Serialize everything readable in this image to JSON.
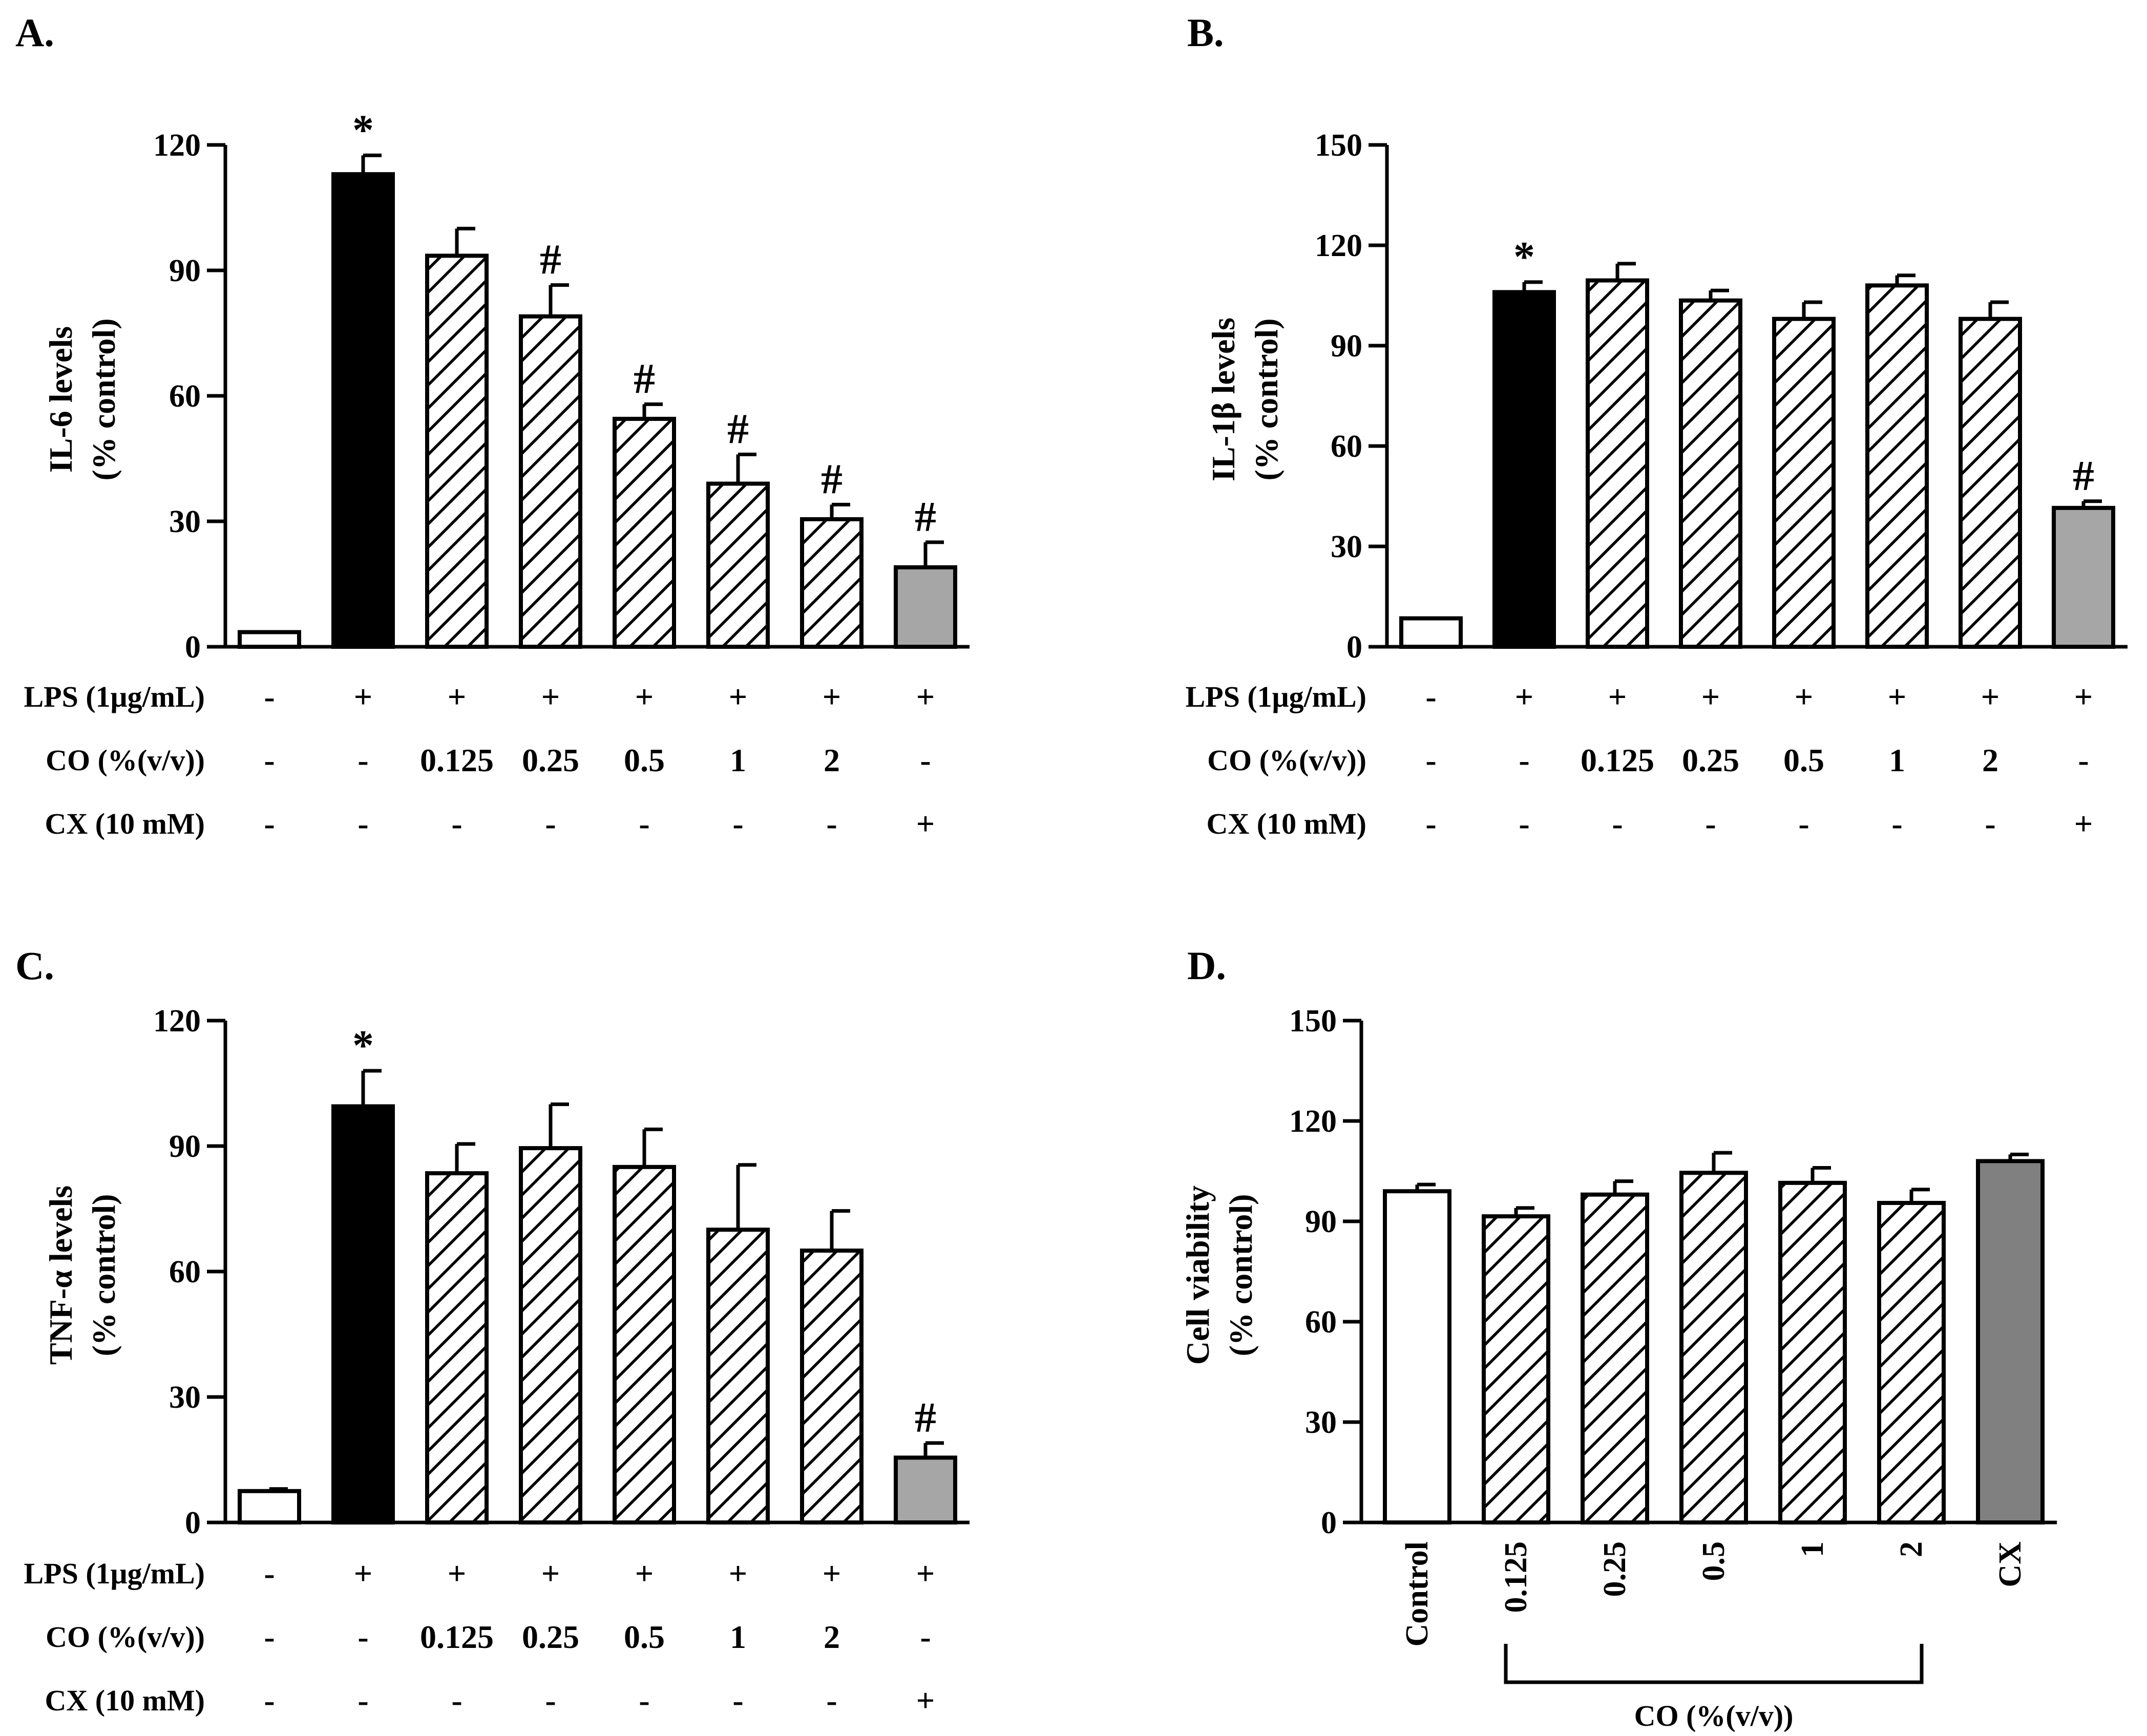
{
  "colors": {
    "axis": "#000000",
    "white": "#ffffff",
    "black": "#000000",
    "grey": "#a6a6a6",
    "dark_grey": "#808080"
  },
  "chart_data": [
    {
      "type": "bar",
      "panel": "A.",
      "ylabel_lines": [
        "IL-6 levels",
        "(% control)"
      ],
      "ylim": [
        0,
        120
      ],
      "yticks": [
        0,
        30,
        60,
        90,
        120
      ],
      "values": [
        3.5,
        113,
        93.5,
        79,
        54.5,
        39,
        30.5,
        19
      ],
      "errors": [
        0,
        4.5,
        6.5,
        7.5,
        3.5,
        7,
        3.5,
        6
      ],
      "fills": [
        "white",
        "black",
        "hatch",
        "hatch",
        "hatch",
        "hatch",
        "hatch",
        "grey"
      ],
      "marks": [
        "",
        "*",
        "",
        "#",
        "#",
        "#",
        "#",
        "#"
      ],
      "conditions": [
        {
          "label": "LPS (1μg/mL)",
          "values": [
            "-",
            "+",
            "+",
            "+",
            "+",
            "+",
            "+",
            "+"
          ]
        },
        {
          "label": "CO (%(v/v))",
          "values": [
            "-",
            "-",
            "0.125",
            "0.25",
            "0.5",
            "1",
            "2",
            "-"
          ]
        },
        {
          "label": "CX (10 mM)",
          "values": [
            "-",
            "-",
            "-",
            "-",
            "-",
            "-",
            "-",
            "+"
          ]
        }
      ]
    },
    {
      "type": "bar",
      "panel": "B.",
      "ylabel_lines": [
        "IL-1β levels",
        "(% control)"
      ],
      "ylim": [
        0,
        150
      ],
      "yticks": [
        0,
        30,
        60,
        90,
        120,
        150
      ],
      "values": [
        8.5,
        106,
        109.5,
        103.5,
        98,
        108,
        98,
        41.5
      ],
      "errors": [
        0,
        3,
        5,
        3,
        5,
        3,
        5,
        2
      ],
      "fills": [
        "white",
        "black",
        "hatch",
        "hatch",
        "hatch",
        "hatch",
        "hatch",
        "grey"
      ],
      "marks": [
        "",
        "*",
        "",
        "",
        "",
        "",
        "",
        "#"
      ],
      "conditions": [
        {
          "label": "LPS (1μg/mL)",
          "values": [
            "-",
            "+",
            "+",
            "+",
            "+",
            "+",
            "+",
            "+"
          ]
        },
        {
          "label": "CO (%(v/v))",
          "values": [
            "-",
            "-",
            "0.125",
            "0.25",
            "0.5",
            "1",
            "2",
            "-"
          ]
        },
        {
          "label": "CX (10 mM)",
          "values": [
            "-",
            "-",
            "-",
            "-",
            "-",
            "-",
            "-",
            "+"
          ]
        }
      ]
    },
    {
      "type": "bar",
      "panel": "C.",
      "ylabel_lines": [
        "TNF-α levels",
        "(% control)"
      ],
      "ylim": [
        0,
        120
      ],
      "yticks": [
        0,
        30,
        60,
        90,
        120
      ],
      "values": [
        7.5,
        99.5,
        83.5,
        89.5,
        85,
        70,
        65,
        15.5
      ],
      "errors": [
        0.5,
        8.5,
        7,
        10.5,
        9,
        15.5,
        9.5,
        3.5
      ],
      "fills": [
        "white",
        "black",
        "hatch",
        "hatch",
        "hatch",
        "hatch",
        "hatch",
        "grey"
      ],
      "marks": [
        "",
        "*",
        "",
        "",
        "",
        "",
        "",
        "#"
      ],
      "conditions": [
        {
          "label": "LPS (1μg/mL)",
          "values": [
            "-",
            "+",
            "+",
            "+",
            "+",
            "+",
            "+",
            "+"
          ]
        },
        {
          "label": "CO (%(v/v))",
          "values": [
            "-",
            "-",
            "0.125",
            "0.25",
            "0.5",
            "1",
            "2",
            "-"
          ]
        },
        {
          "label": "CX (10 mM)",
          "values": [
            "-",
            "-",
            "-",
            "-",
            "-",
            "-",
            "-",
            "+"
          ]
        }
      ]
    },
    {
      "type": "bar",
      "panel": "D.",
      "ylabel_lines": [
        "Cell viability",
        "(% control)"
      ],
      "ylim": [
        0,
        150
      ],
      "yticks": [
        0,
        30,
        60,
        90,
        120,
        150
      ],
      "categories": [
        "Control",
        "0.125",
        "0.25",
        "0.5",
        "1",
        "2",
        "CX"
      ],
      "values": [
        99,
        91.5,
        98,
        104.5,
        101.5,
        95.5,
        108
      ],
      "errors": [
        2,
        2.5,
        4,
        6,
        4.5,
        4,
        2
      ],
      "fills": [
        "white",
        "hatch",
        "hatch",
        "hatch",
        "hatch",
        "hatch",
        "darkgrey"
      ],
      "group_label": "CO (%(v/v))"
    }
  ]
}
